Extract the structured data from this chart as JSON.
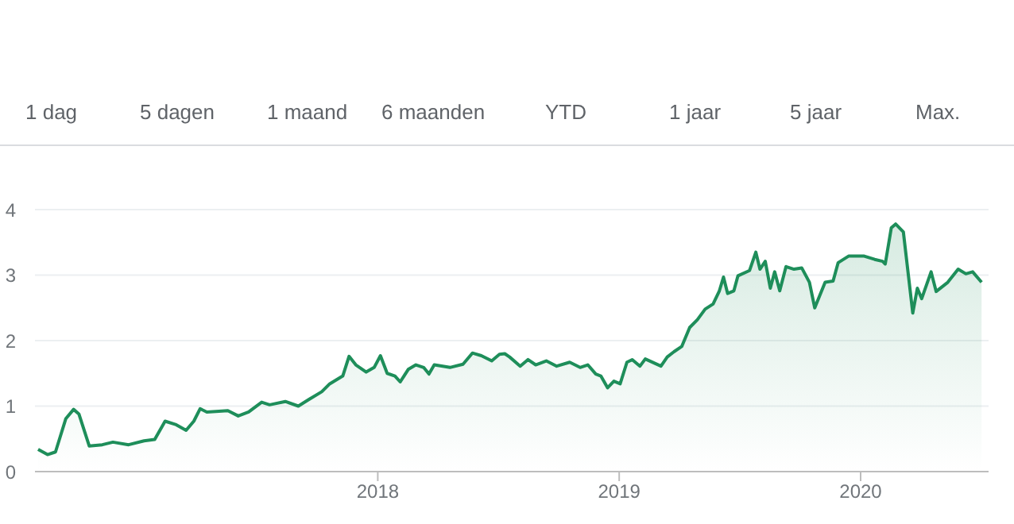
{
  "chart_data": {
    "type": "area",
    "annotations": [
      "1 dag",
      "5 dagen",
      "1 maand",
      "6 maanden",
      "YTD",
      "1 jaar",
      "5 jaar",
      "Max."
    ],
    "x": [
      2016.593,
      2016.632,
      2016.665,
      2016.708,
      2016.74,
      2016.762,
      2016.805,
      2016.859,
      2016.903,
      2016.968,
      2017.032,
      2017.076,
      2017.119,
      2017.162,
      2017.206,
      2017.238,
      2017.264,
      2017.292,
      2017.379,
      2017.422,
      2017.465,
      2017.519,
      2017.552,
      2017.617,
      2017.671,
      2017.714,
      2017.768,
      2017.801,
      2017.855,
      2017.881,
      2017.909,
      2017.952,
      2017.985,
      2018.011,
      2018.039,
      2018.071,
      2018.093,
      2018.126,
      2018.158,
      2018.19,
      2018.212,
      2018.234,
      2018.299,
      2018.353,
      2018.392,
      2018.429,
      2018.472,
      2018.504,
      2018.526,
      2018.546,
      2018.59,
      2018.622,
      2018.654,
      2018.698,
      2018.741,
      2018.795,
      2018.838,
      2018.87,
      2018.903,
      2018.924,
      2018.952,
      2018.978,
      2019.004,
      2019.032,
      2019.054,
      2019.086,
      2019.108,
      2019.173,
      2019.199,
      2019.227,
      2019.259,
      2019.292,
      2019.324,
      2019.356,
      2019.389,
      2019.415,
      2019.432,
      2019.449,
      2019.475,
      2019.492,
      2019.54,
      2019.566,
      2019.583,
      2019.605,
      2019.626,
      2019.644,
      2019.665,
      2019.691,
      2019.724,
      2019.756,
      2019.788,
      2019.81,
      2019.853,
      2019.886,
      2019.907,
      2019.95,
      2020.015,
      2020.058,
      2020.091,
      2020.102,
      2020.127,
      2020.145,
      2020.177,
      2020.216,
      2020.235,
      2020.253,
      2020.292,
      2020.313,
      2020.361,
      2020.404,
      2020.436,
      2020.464,
      2020.501
    ],
    "series": [
      {
        "color": "#1e8e5a",
        "values": [
          0.34,
          0.26,
          0.3,
          0.81,
          0.95,
          0.88,
          0.39,
          0.41,
          0.45,
          0.41,
          0.47,
          0.49,
          0.77,
          0.72,
          0.63,
          0.77,
          0.96,
          0.91,
          0.93,
          0.85,
          0.91,
          1.06,
          1.02,
          1.07,
          1.0,
          1.1,
          1.22,
          1.34,
          1.46,
          1.76,
          1.63,
          1.52,
          1.59,
          1.77,
          1.5,
          1.46,
          1.37,
          1.56,
          1.63,
          1.59,
          1.49,
          1.63,
          1.59,
          1.64,
          1.81,
          1.77,
          1.69,
          1.79,
          1.8,
          1.75,
          1.61,
          1.71,
          1.63,
          1.69,
          1.61,
          1.67,
          1.59,
          1.63,
          1.49,
          1.46,
          1.28,
          1.38,
          1.34,
          1.67,
          1.71,
          1.61,
          1.72,
          1.61,
          1.75,
          1.83,
          1.91,
          2.2,
          2.32,
          2.48,
          2.56,
          2.76,
          2.97,
          2.72,
          2.76,
          2.99,
          3.07,
          3.35,
          3.09,
          3.21,
          2.8,
          3.05,
          2.76,
          3.13,
          3.09,
          3.11,
          2.89,
          2.5,
          2.89,
          2.91,
          3.19,
          3.29,
          3.29,
          3.24,
          3.21,
          3.17,
          3.72,
          3.78,
          3.66,
          2.42,
          2.8,
          2.64,
          3.05,
          2.75,
          2.89,
          3.09,
          3.02,
          3.05,
          2.89
        ]
      }
    ],
    "xlim": [
      2016.58,
      2020.53
    ],
    "xticks": [
      2018,
      2019,
      2020
    ],
    "ylim": [
      0,
      4
    ],
    "yticks": [
      0,
      1,
      2,
      3,
      4
    ],
    "grid": "y"
  }
}
